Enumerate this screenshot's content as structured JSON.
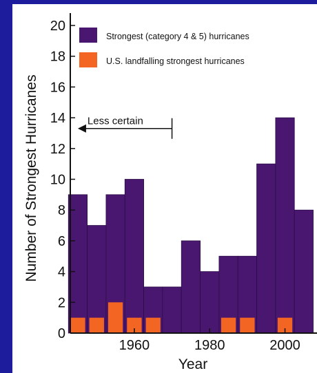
{
  "chart_data": {
    "type": "bar",
    "title": "",
    "xlabel": "Year",
    "ylabel": "Number of Strongest Hurricanes",
    "ylim": [
      0,
      20
    ],
    "yticks": [
      0,
      2,
      4,
      6,
      8,
      10,
      12,
      14,
      16,
      18,
      20
    ],
    "xticks": [
      1960,
      1980,
      2000
    ],
    "x": [
      1945,
      1950,
      1955,
      1960,
      1965,
      1970,
      1975,
      1980,
      1985,
      1990,
      1995,
      2000,
      2005
    ],
    "bin_width": 5,
    "series": [
      {
        "name": "Strongest (category 4 & 5) hurricanes",
        "color": "#4a1770",
        "values": [
          9,
          7,
          9,
          10,
          3,
          3,
          6,
          4,
          5,
          5,
          11,
          14,
          8
        ]
      },
      {
        "name": "U.S. landfalling strongest hurricanes",
        "color": "#f26522",
        "values": [
          1,
          1,
          2,
          1,
          1,
          0,
          0,
          0,
          1,
          1,
          0,
          1,
          0
        ]
      }
    ],
    "legend": "top-right",
    "grid": false,
    "annotation": {
      "text": "Less certain",
      "from_year": 1945,
      "to_year": 1970,
      "y": 13.3
    }
  }
}
